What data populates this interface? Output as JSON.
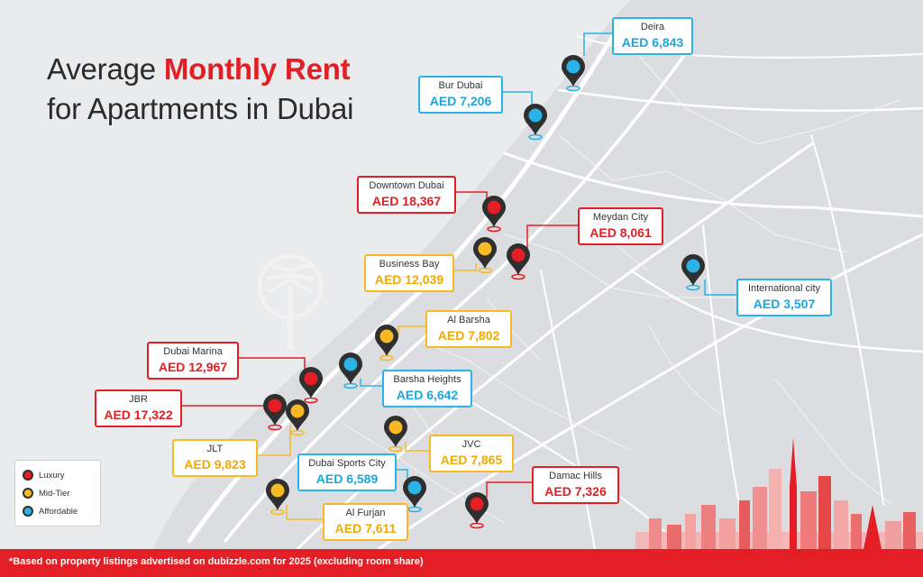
{
  "title": {
    "line1_prefix": "Average ",
    "line1_highlight": "Monthly Rent",
    "line2": "for Apartments in Dubai"
  },
  "colors": {
    "luxury": "#e31e24",
    "mid_tier": "#f7b924",
    "affordable": "#29b3e6",
    "pin": "#2f2f2f"
  },
  "locations": [
    {
      "name": "Deira",
      "price": "AED 6,843",
      "tier": "affordable"
    },
    {
      "name": "Bur Dubai",
      "price": "AED 7,206",
      "tier": "affordable"
    },
    {
      "name": "Downtown Dubai",
      "price": "AED 18,367",
      "tier": "luxury"
    },
    {
      "name": "Meydan City",
      "price": "AED 8,061",
      "tier": "luxury"
    },
    {
      "name": "Business Bay",
      "price": "AED 12,039",
      "tier": "mid_tier"
    },
    {
      "name": "International city",
      "price": "AED 3,507",
      "tier": "affordable"
    },
    {
      "name": "Al Barsha",
      "price": "AED 7,802",
      "tier": "mid_tier"
    },
    {
      "name": "Dubai Marina",
      "price": "AED 12,967",
      "tier": "luxury"
    },
    {
      "name": "Barsha Heights",
      "price": "AED 6,642",
      "tier": "affordable"
    },
    {
      "name": "JBR",
      "price": "AED 17,322",
      "tier": "luxury"
    },
    {
      "name": "JLT",
      "price": "AED 9,823",
      "tier": "mid_tier"
    },
    {
      "name": "JVC",
      "price": "AED 7,865",
      "tier": "mid_tier"
    },
    {
      "name": "Dubai Sports City",
      "price": "AED 6,589",
      "tier": "affordable"
    },
    {
      "name": "Damac Hills",
      "price": "AED 7,326",
      "tier": "luxury"
    },
    {
      "name": "Al Furjan",
      "price": "AED 7,611",
      "tier": "mid_tier"
    }
  ],
  "legend": {
    "luxury": "Luxury",
    "mid_tier": "Mid-Tier",
    "affordable": "Affordable"
  },
  "footer": "*Based on property listings advertised on dubizzle.com for 2025 (excluding room share)"
}
